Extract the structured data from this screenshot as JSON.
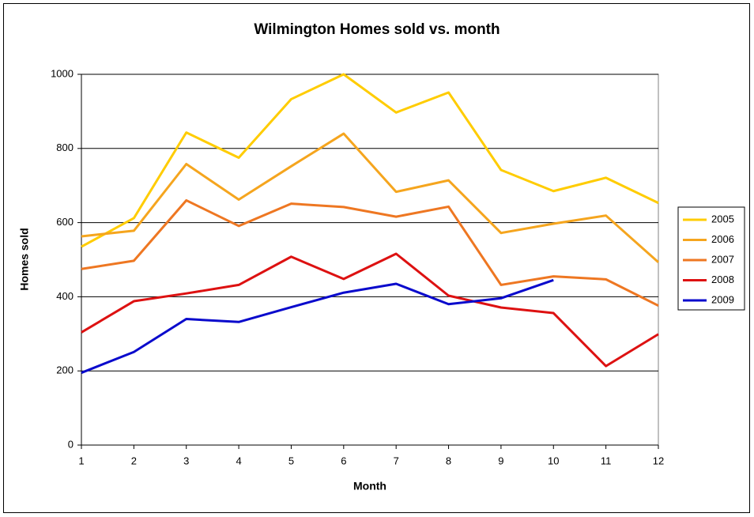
{
  "chart_data": {
    "type": "line",
    "title": "Wilmington Homes sold vs. month",
    "x_label": "Month",
    "y_label": "Homes sold",
    "x": [
      1,
      2,
      3,
      4,
      5,
      6,
      7,
      8,
      9,
      10,
      11,
      12
    ],
    "xlim": [
      1,
      12
    ],
    "xticks": [
      1,
      2,
      3,
      4,
      5,
      6,
      7,
      8,
      9,
      10,
      11,
      12
    ],
    "ylim": [
      0,
      1000
    ],
    "yticks": [
      0,
      200,
      400,
      600,
      800,
      1000
    ],
    "grid": true,
    "legend": "right",
    "series": [
      {
        "name": "2005",
        "color": "#FFCC00",
        "values": [
          535,
          612,
          843,
          775,
          933,
          1000,
          897,
          951,
          742,
          685,
          721,
          653
        ]
      },
      {
        "name": "2006",
        "color": "#F5A51E",
        "values": [
          563,
          578,
          758,
          662,
          752,
          840,
          683,
          714,
          572,
          597,
          619,
          493
        ]
      },
      {
        "name": "2007",
        "color": "#EE7722",
        "values": [
          475,
          497,
          660,
          591,
          651,
          642,
          616,
          643,
          432,
          455,
          447,
          376
        ]
      },
      {
        "name": "2008",
        "color": "#DD1111",
        "values": [
          304,
          388,
          409,
          432,
          508,
          448,
          516,
          403,
          371,
          356,
          213,
          299
        ]
      },
      {
        "name": "2009",
        "color": "#0A0ACC",
        "values": [
          195,
          251,
          340,
          332,
          372,
          411,
          435,
          380,
          396,
          445,
          null,
          null
        ]
      }
    ]
  }
}
